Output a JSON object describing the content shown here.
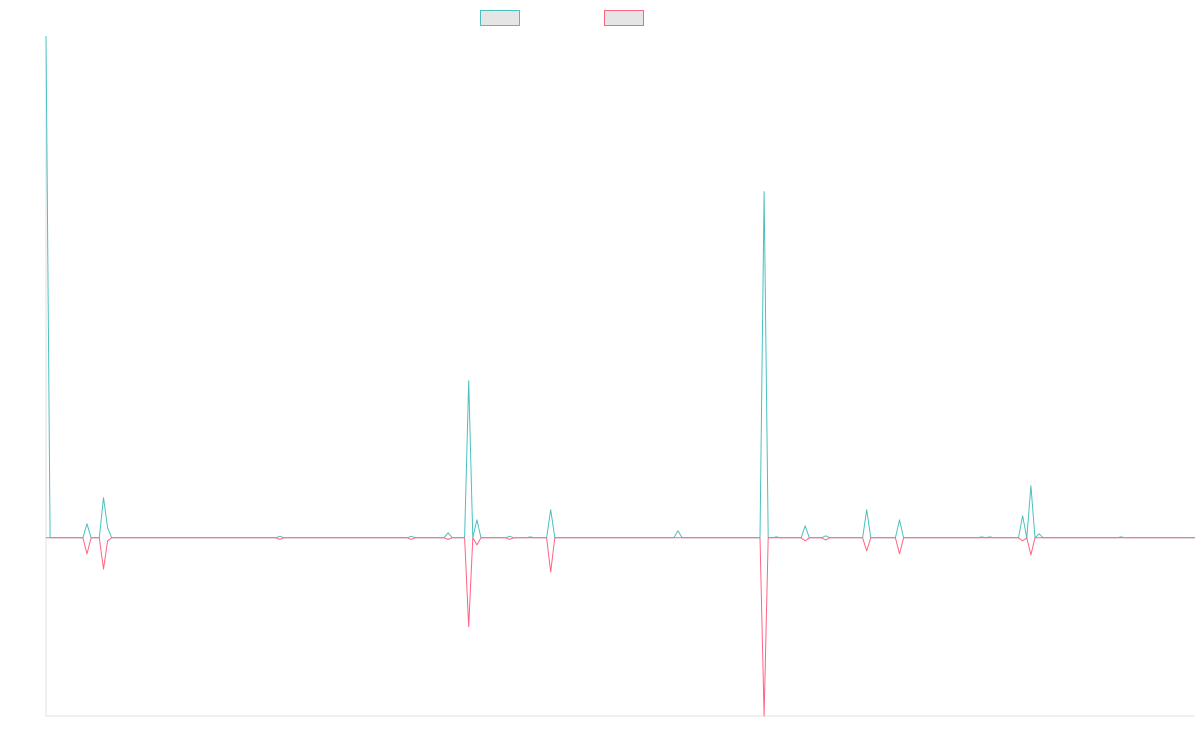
{
  "chart_data": {
    "type": "line",
    "title": "",
    "xlabel": "",
    "ylabel": "",
    "x_count": 281,
    "xlim": [
      0,
      280
    ],
    "ylim": [
      -35.5,
      100
    ],
    "grid": false,
    "legend": "top",
    "series": [
      {
        "color": "#4bc0c0",
        "points": [
          [
            0,
            100
          ],
          [
            10,
            2.8
          ],
          [
            14,
            8
          ],
          [
            15,
            2
          ],
          [
            57,
            0.3
          ],
          [
            89,
            0.3
          ],
          [
            98,
            1
          ],
          [
            103,
            31.3
          ],
          [
            105,
            3.6
          ],
          [
            113,
            0.3
          ],
          [
            118,
            0.2
          ],
          [
            123,
            5.6
          ],
          [
            154,
            1.4
          ],
          [
            175,
            69
          ],
          [
            178,
            0.2
          ],
          [
            185,
            2.4
          ],
          [
            190,
            0.4
          ],
          [
            200,
            5.6
          ],
          [
            208,
            3.6
          ],
          [
            228,
            0.2
          ],
          [
            230,
            0.2
          ],
          [
            238,
            4.4
          ],
          [
            240,
            10.4
          ],
          [
            242,
            0.8
          ],
          [
            262,
            0.2
          ]
        ]
      },
      {
        "color": "#ff6384",
        "points": [
          [
            10,
            -3.2
          ],
          [
            14,
            -6.2
          ],
          [
            15,
            -0.6
          ],
          [
            57,
            -0.3
          ],
          [
            89,
            -0.3
          ],
          [
            98,
            -0.3
          ],
          [
            103,
            -17.7
          ],
          [
            105,
            -1.4
          ],
          [
            113,
            -0.3
          ],
          [
            123,
            -6.8
          ],
          [
            175,
            -35.5
          ],
          [
            185,
            -0.6
          ],
          [
            190,
            -0.4
          ],
          [
            200,
            -2.6
          ],
          [
            208,
            -3.2
          ],
          [
            238,
            -0.6
          ],
          [
            240,
            -3.4
          ]
        ]
      }
    ]
  }
}
